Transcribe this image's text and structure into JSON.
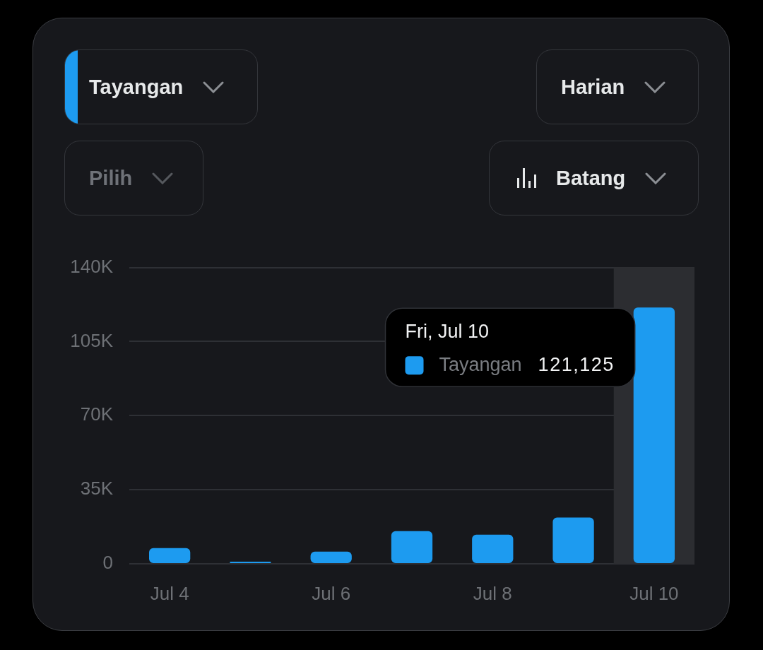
{
  "chart_data": {
    "type": "bar",
    "categories": [
      "Jul 4",
      null,
      "Jul 6",
      null,
      "Jul 8",
      null,
      "Jul 10"
    ],
    "series": [
      {
        "name": "Tayangan",
        "color": "#1d9bf0",
        "values": [
          7400,
          1000,
          5800,
          15400,
          13800,
          21900,
          121125
        ]
      }
    ],
    "ylim": [
      0,
      140000
    ],
    "yticks": [
      0,
      {
        "value": 35000,
        "label": "35K"
      },
      {
        "value": 70000,
        "label": "70K"
      },
      {
        "value": 105000,
        "label": "105K"
      },
      {
        "value": 140000,
        "label": "140K"
      }
    ],
    "grid": "y",
    "legend": "top right",
    "bands": [
      {
        "axis": "x",
        "from": "Jul 10",
        "to": "Jul 10",
        "color": "#2c2d31"
      }
    ],
    "annotations": [
      "Harian",
      "Pilih",
      "Batang",
      "Fri, Jul 10",
      "121,125"
    ]
  }
}
